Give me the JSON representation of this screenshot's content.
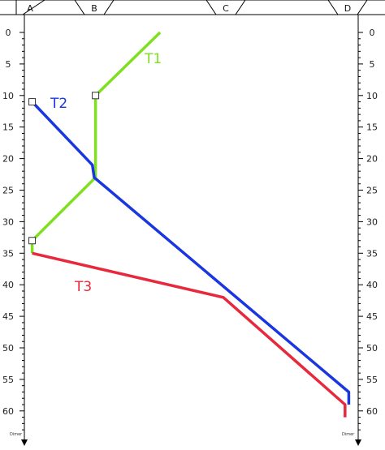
{
  "chart_data": {
    "type": "line",
    "title": "",
    "ylabel": "Dimer",
    "ylim": [
      0,
      63
    ],
    "ytick_values": [
      0,
      5,
      10,
      15,
      20,
      25,
      30,
      35,
      40,
      45,
      50,
      55,
      60
    ],
    "ytick_labels": [
      "0",
      "5",
      "10",
      "15",
      "20",
      "25",
      "30",
      "35",
      "40",
      "45",
      "50",
      "55",
      "60"
    ],
    "header_labels": [
      "A",
      "B",
      "C",
      "D"
    ],
    "x_positions": {
      "A": 0,
      "B": 1,
      "C": 3,
      "D": 5
    },
    "grid": false,
    "series": [
      {
        "name": "T1",
        "color": "#7fe020",
        "points": [
          [
            2.02,
            0
          ],
          [
            1.02,
            10
          ],
          [
            1.02,
            23
          ],
          [
            0.02,
            33
          ],
          [
            0.02,
            35
          ]
        ],
        "markers": [
          [
            1.02,
            10
          ],
          [
            0.02,
            33
          ]
        ]
      },
      {
        "name": "T2",
        "color": "#1a36e0",
        "points": [
          [
            0.02,
            11
          ],
          [
            0.97,
            21
          ],
          [
            1.0,
            23
          ],
          [
            4.98,
            57
          ],
          [
            4.98,
            59
          ]
        ],
        "markers": [
          [
            0.02,
            11
          ]
        ]
      },
      {
        "name": "T3",
        "color": "#e8283c",
        "points": [
          [
            0.02,
            35
          ],
          [
            3.0,
            42
          ],
          [
            4.92,
            59
          ],
          [
            4.92,
            61
          ]
        ],
        "markers": []
      }
    ]
  }
}
